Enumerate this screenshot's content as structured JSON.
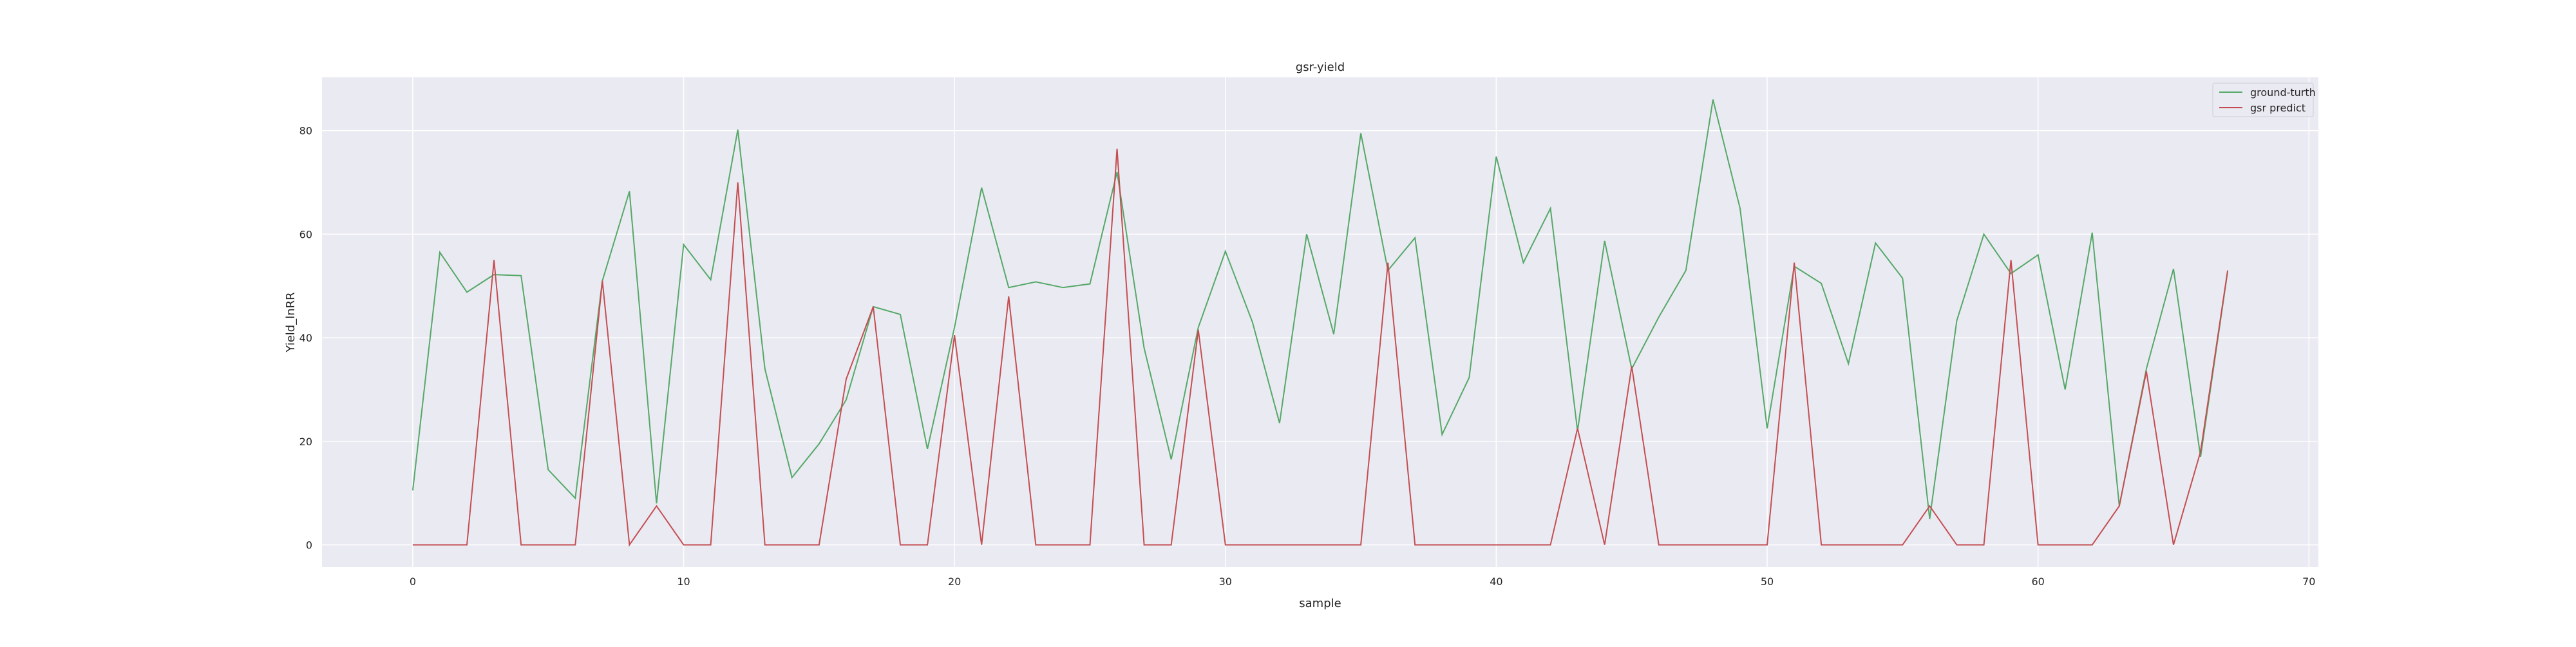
{
  "chart_data": {
    "type": "line",
    "title": "gsr-yield",
    "xlabel": "sample",
    "ylabel": "Yield_lnRR",
    "xlim": [
      -3.35,
      70.35
    ],
    "ylim": [
      -4.3,
      90.3
    ],
    "xticks": [
      0,
      10,
      20,
      30,
      40,
      50,
      60,
      70
    ],
    "yticks": [
      0,
      20,
      40,
      60,
      80
    ],
    "grid": true,
    "legend_position": "top-right",
    "x": [
      0,
      1,
      2,
      3,
      4,
      5,
      6,
      7,
      8,
      9,
      10,
      11,
      12,
      13,
      14,
      15,
      16,
      17,
      18,
      19,
      20,
      21,
      22,
      23,
      24,
      25,
      26,
      27,
      28,
      29,
      30,
      31,
      32,
      33,
      34,
      35,
      36,
      37,
      38,
      39,
      40,
      41,
      42,
      43,
      44,
      45,
      46,
      47,
      48,
      49,
      50,
      51,
      52,
      53,
      54,
      55,
      56,
      57,
      58,
      59,
      60,
      61,
      62,
      63,
      64,
      65,
      66,
      67
    ],
    "series": [
      {
        "name": "ground-turth",
        "color": "#55a868",
        "values": [
          10.5,
          56.5,
          48.8,
          52.2,
          52.0,
          14.5,
          9.0,
          51.0,
          68.3,
          8.0,
          58.0,
          51.2,
          80.2,
          34.0,
          13.0,
          19.5,
          28.0,
          46.0,
          44.5,
          18.5,
          42.0,
          69.0,
          49.7,
          50.8,
          49.7,
          50.4,
          72.0,
          38.0,
          16.5,
          42.0,
          56.7,
          43.0,
          23.5,
          60.0,
          40.7,
          79.5,
          53.0,
          59.3,
          21.3,
          32.3,
          75.0,
          54.5,
          65.0,
          22.0,
          58.7,
          34.0,
          44.0,
          53.0,
          86.0,
          65.0,
          22.5,
          53.8,
          50.5,
          35.0,
          58.3,
          51.5,
          5.0,
          43.3,
          60.0,
          52.4,
          56.0,
          30.0,
          60.3,
          7.5,
          34.0,
          53.3,
          17.0,
          52.8
        ]
      },
      {
        "name": "gsr predict",
        "color": "#c44e52",
        "values": [
          0,
          0,
          0,
          55.0,
          0,
          0,
          0,
          51.0,
          0,
          7.5,
          0,
          0,
          70.0,
          0,
          0,
          0,
          32.0,
          46.0,
          0,
          0,
          40.5,
          0,
          48.0,
          0,
          0,
          0,
          76.5,
          0,
          0,
          41.5,
          0,
          0,
          0,
          0,
          0,
          0,
          54.5,
          0,
          0,
          0,
          0,
          0,
          0,
          22.5,
          0,
          34.5,
          0,
          0,
          0,
          0,
          0,
          54.5,
          0,
          0,
          0,
          0,
          7.5,
          0,
          0,
          55.0,
          0,
          0,
          0,
          7.5,
          33.5,
          0,
          18.0,
          53.0
        ]
      }
    ]
  }
}
